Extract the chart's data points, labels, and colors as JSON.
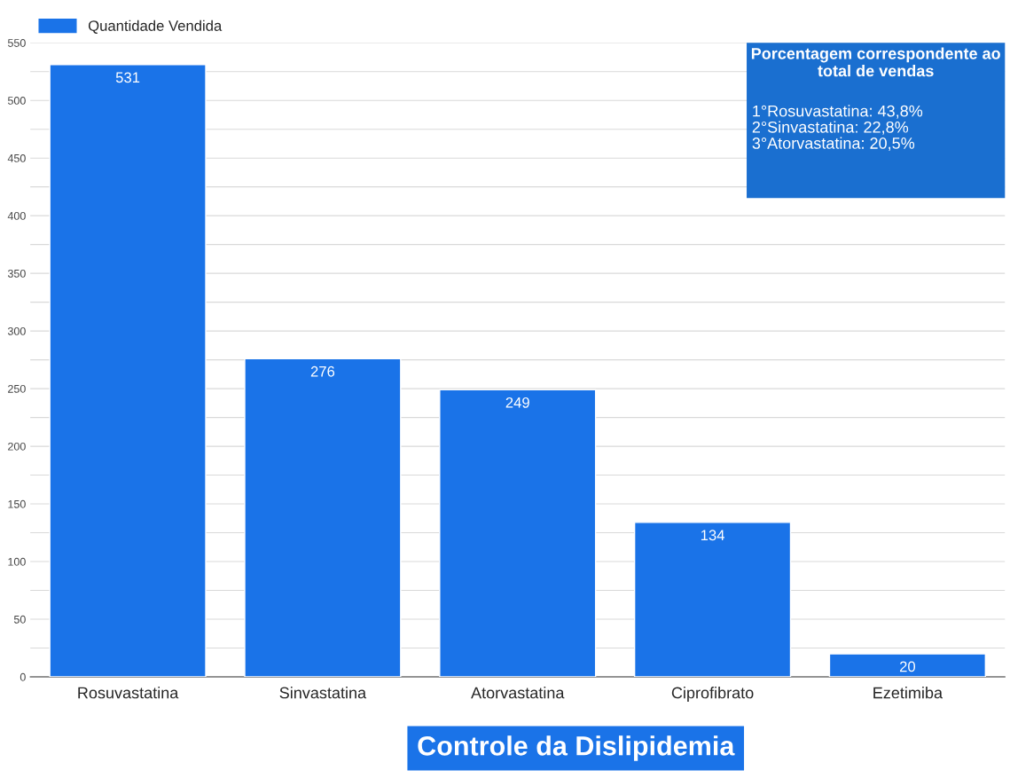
{
  "chart_data": {
    "type": "bar",
    "title": "Controle da Dislipidemia",
    "categories": [
      "Rosuvastatina",
      "Sinvastatina",
      "Atorvastatina",
      "Ciprofibrato",
      "Ezetimiba"
    ],
    "series": [
      {
        "name": "Quantidade Vendida",
        "color": "#1a73e8",
        "values": [
          531,
          276,
          249,
          134,
          20
        ]
      }
    ],
    "data_labels": true,
    "ylim": [
      0,
      550
    ],
    "yticks": [
      0,
      {
        "value": 25,
        "label": null
      },
      50,
      {
        "value": 75,
        "label": null
      },
      100,
      {
        "value": 125,
        "label": null
      },
      150,
      {
        "value": 175,
        "label": null
      },
      200,
      {
        "value": 225,
        "label": null
      },
      250,
      {
        "value": 275,
        "label": null
      },
      300,
      {
        "value": 325,
        "label": null
      },
      350,
      {
        "value": 375,
        "label": null
      },
      400,
      {
        "value": 425,
        "label": null
      },
      450,
      {
        "value": 475,
        "label": null
      },
      500,
      {
        "value": 525,
        "label": null
      },
      550
    ],
    "grid": "y",
    "legend": "top left",
    "annotations": [
      "Porcentagem correspondente ao\ntotal de vendas",
      "1°Rosuvastatina: 43,8%\n2°Sinvastatina: 22,8%\n3°Atorvastatina: 20,5%"
    ]
  }
}
